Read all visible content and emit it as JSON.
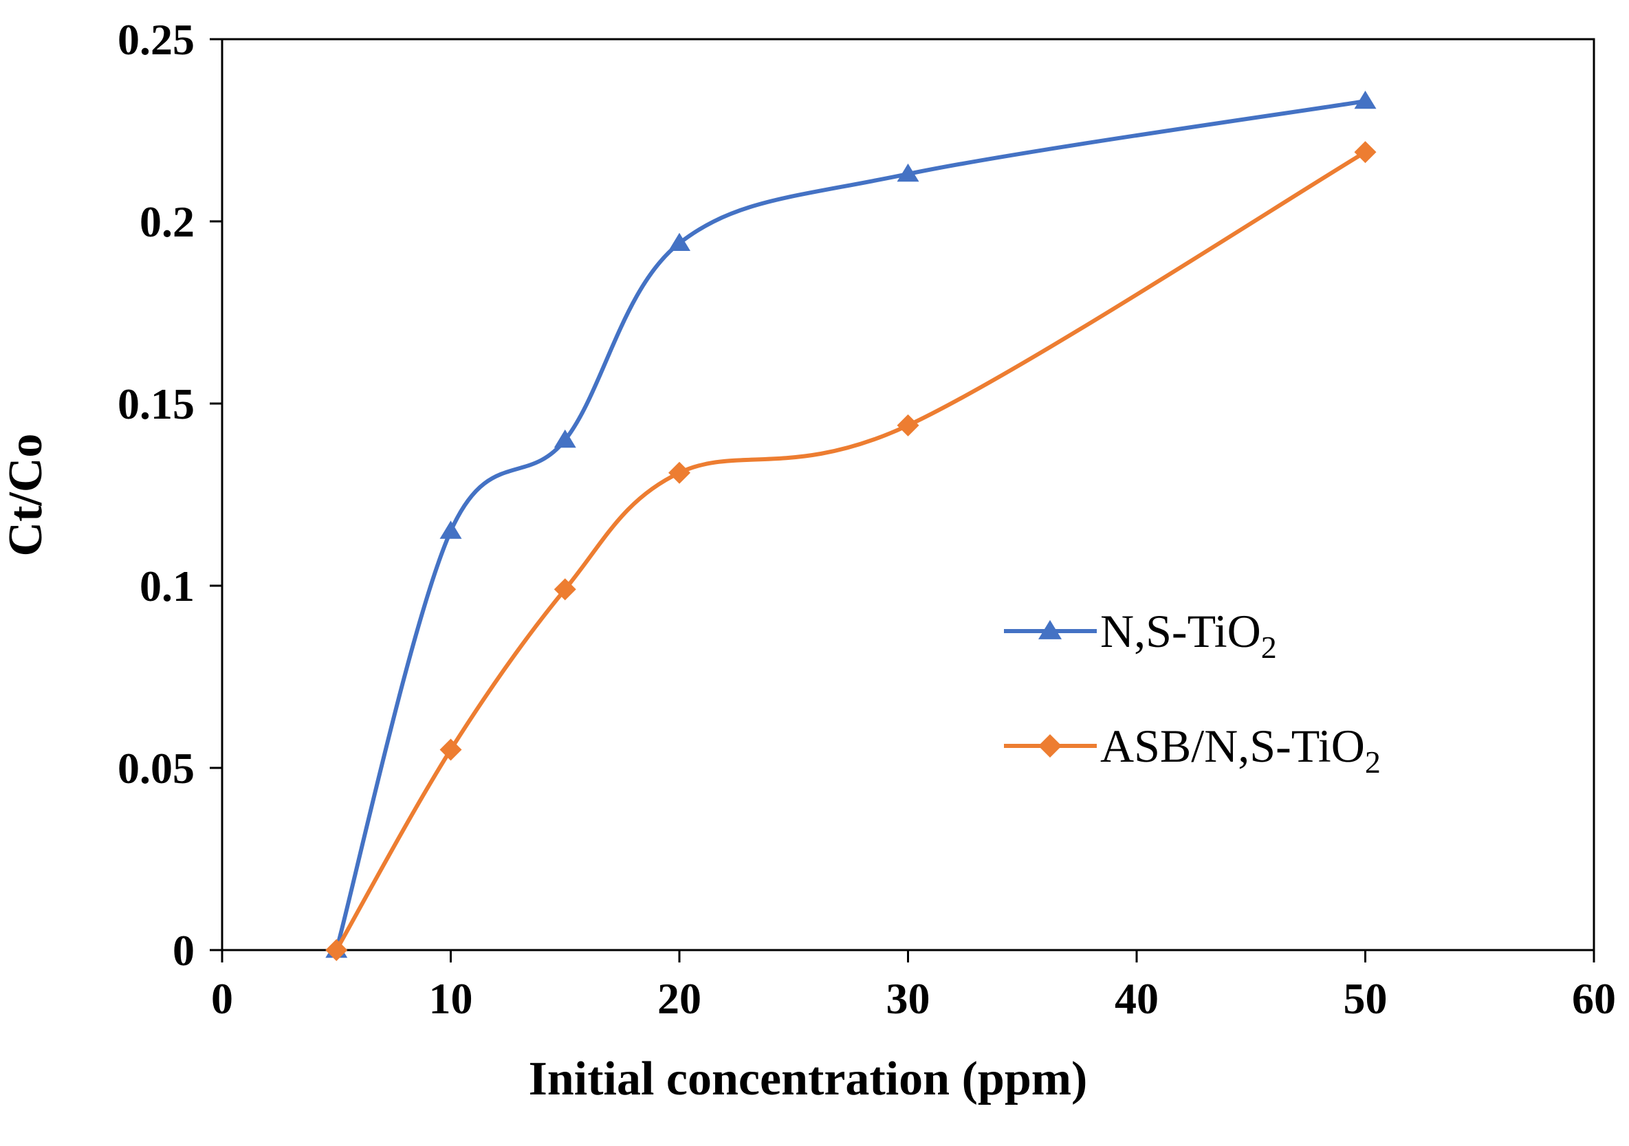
{
  "chart_data": {
    "type": "line",
    "title": "",
    "xlabel": "Initial concentration (ppm)",
    "ylabel": "Ct/Co",
    "xlim": [
      0,
      60
    ],
    "ylim": [
      0,
      0.25
    ],
    "x_ticks": [
      "0",
      "10",
      "20",
      "30",
      "40",
      "50",
      "60"
    ],
    "y_ticks": [
      "0",
      "0.05",
      "0.1",
      "0.15",
      "0.2",
      "0.25"
    ],
    "x_tick_values": [
      0,
      10,
      20,
      30,
      40,
      50,
      60
    ],
    "y_tick_values": [
      0,
      0.05,
      0.1,
      0.15,
      0.2,
      0.25
    ],
    "grid": false,
    "smooth": true,
    "legend_position": "center-right",
    "series": [
      {
        "name": "N,S-TiO2",
        "label_main": "N,S-TiO",
        "label_sub": "2",
        "color": "#4472C4",
        "marker": "triangle",
        "x": [
          5,
          10,
          15,
          20,
          30,
          50
        ],
        "y": [
          0.0,
          0.115,
          0.14,
          0.194,
          0.213,
          0.233
        ]
      },
      {
        "name": "ASB/N,S-TiO2",
        "label_main": "ASB/N,S-TiO",
        "label_sub": "2",
        "color": "#ED7D31",
        "marker": "diamond",
        "x": [
          5,
          10,
          15,
          20,
          30,
          50
        ],
        "y": [
          0.0,
          0.055,
          0.099,
          0.131,
          0.144,
          0.219
        ]
      }
    ]
  }
}
